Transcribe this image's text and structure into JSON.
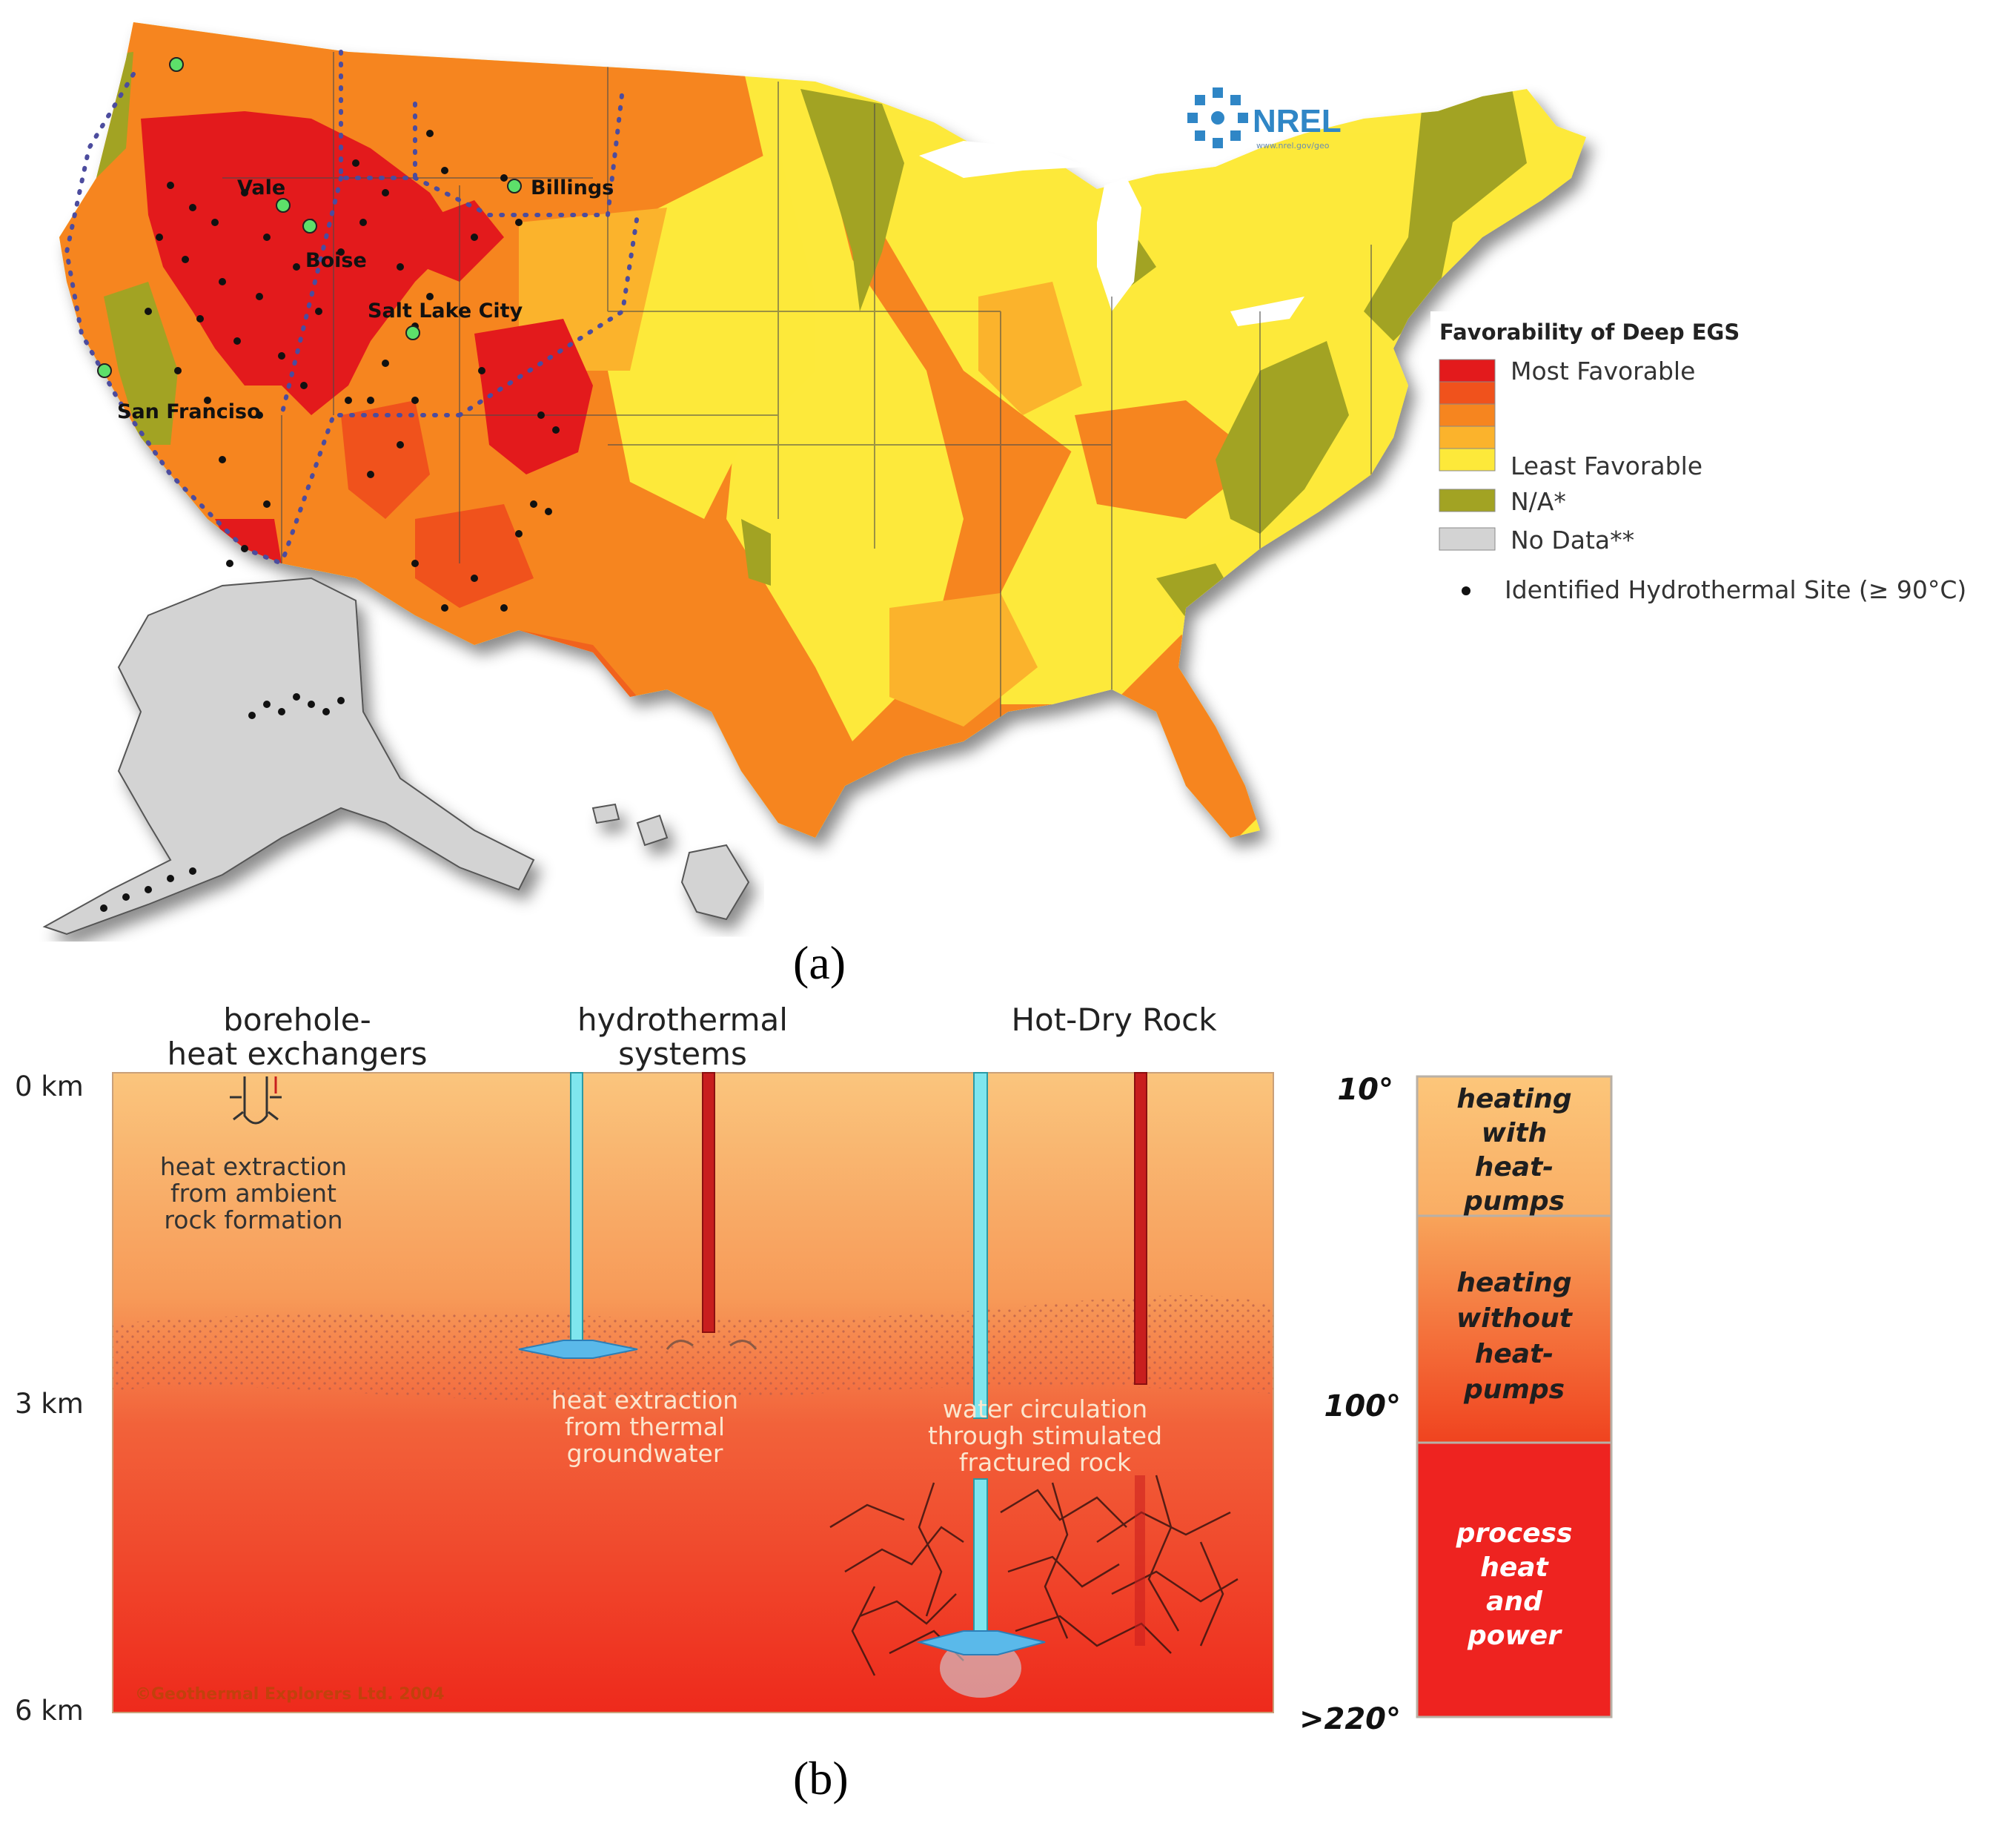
{
  "map": {
    "logo_text": "NREL",
    "logo_subtext": "www.nrel.gov/geo",
    "cities": [
      {
        "id": "vale",
        "label": "Vale"
      },
      {
        "id": "boise",
        "label": "Boise"
      },
      {
        "id": "billings",
        "label": "Billings"
      },
      {
        "id": "slc",
        "label": "Salt Lake City"
      },
      {
        "id": "sf",
        "label": "San Franciso"
      }
    ],
    "legend": {
      "title": "Favorability of Deep EGS",
      "most": "Most Favorable",
      "least": "Least Favorable",
      "na": "N/A*",
      "nodata": "No Data**",
      "site": "Identified Hydrothermal Site (≥ 90°C)",
      "ramp_colors": [
        "#e31a1c",
        "#f0521c",
        "#f6851f",
        "#fbb32c",
        "#fde93a"
      ],
      "na_color": "#a2a323",
      "nodata_color": "#d3d3d3"
    }
  },
  "panel_a_label": "(a)",
  "panel_b_label": "(b)",
  "diagram": {
    "columns": {
      "borehole": [
        "borehole-",
        "heat exchangers"
      ],
      "hydrothermal": [
        "hydrothermal",
        "systems"
      ],
      "hotdry": [
        "Hot-Dry Rock"
      ]
    },
    "depths": [
      "0 km",
      "3 km",
      "6 km"
    ],
    "descriptions": {
      "borehole": [
        "heat extraction",
        "from ambient",
        "rock formation"
      ],
      "hydrothermal": [
        "heat extraction",
        "from thermal",
        "groundwater"
      ],
      "hotdry": [
        "water circulation",
        "through stimulated",
        "fractured rock"
      ]
    },
    "temperatures": [
      "10°",
      "100°",
      ">220°"
    ],
    "uses": {
      "top": [
        "heating",
        "with",
        "heat-",
        "pumps"
      ],
      "middle": [
        "heating",
        "without",
        "heat-",
        "pumps"
      ],
      "bottom": [
        "process",
        "heat",
        "and",
        "power"
      ]
    },
    "copyright": "©Geothermal Explorers Ltd. 2004"
  }
}
